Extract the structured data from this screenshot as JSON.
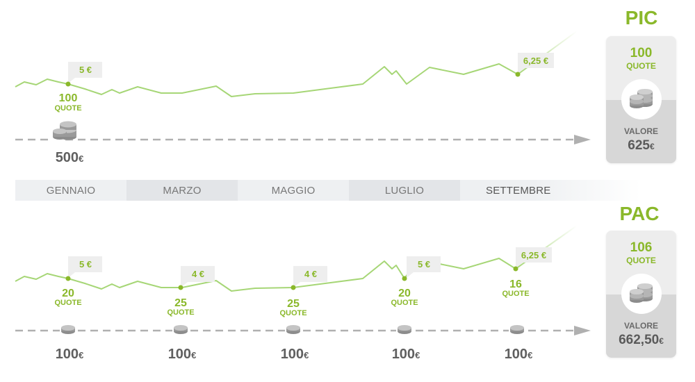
{
  "months": [
    "GENNAIO",
    "MARZO",
    "MAGGIO",
    "LUGLIO",
    "SETTEMBRE"
  ],
  "pic": {
    "title": "PIC",
    "buy_price": "5 €",
    "buy_quote_num": "100",
    "quote_word": "QUOTE",
    "end_price": "6,25 €",
    "investment_amount": "500",
    "currency": "€",
    "card": {
      "quote_num": "100",
      "quote_word": "QUOTE",
      "valore_label": "VALORE",
      "valore_amount": "625",
      "currency": "€"
    }
  },
  "pac": {
    "title": "PAC",
    "installments": [
      {
        "price": "5 €",
        "quote_num": "20",
        "amount": "100"
      },
      {
        "price": "4 €",
        "quote_num": "25",
        "amount": "100"
      },
      {
        "price": "4 €",
        "quote_num": "25",
        "amount": "100"
      },
      {
        "price": "5 €",
        "quote_num": "20",
        "amount": "100"
      },
      {
        "price": "6,25 €",
        "quote_num": "16",
        "amount": "100"
      }
    ],
    "quote_word": "QUOTE",
    "currency": "€",
    "card": {
      "quote_num": "106",
      "quote_word": "QUOTE",
      "valore_label": "VALORE",
      "valore_amount": "662,50",
      "currency": "€"
    }
  },
  "colors": {
    "accent_green": "#8ab82a",
    "line_green": "#a6d676",
    "gray_text": "#5f5f5f",
    "coin_gray": "#a9a9a9"
  },
  "icons": [
    "coins-stack-icon",
    "coin-icon",
    "arrow-right-icon"
  ]
}
